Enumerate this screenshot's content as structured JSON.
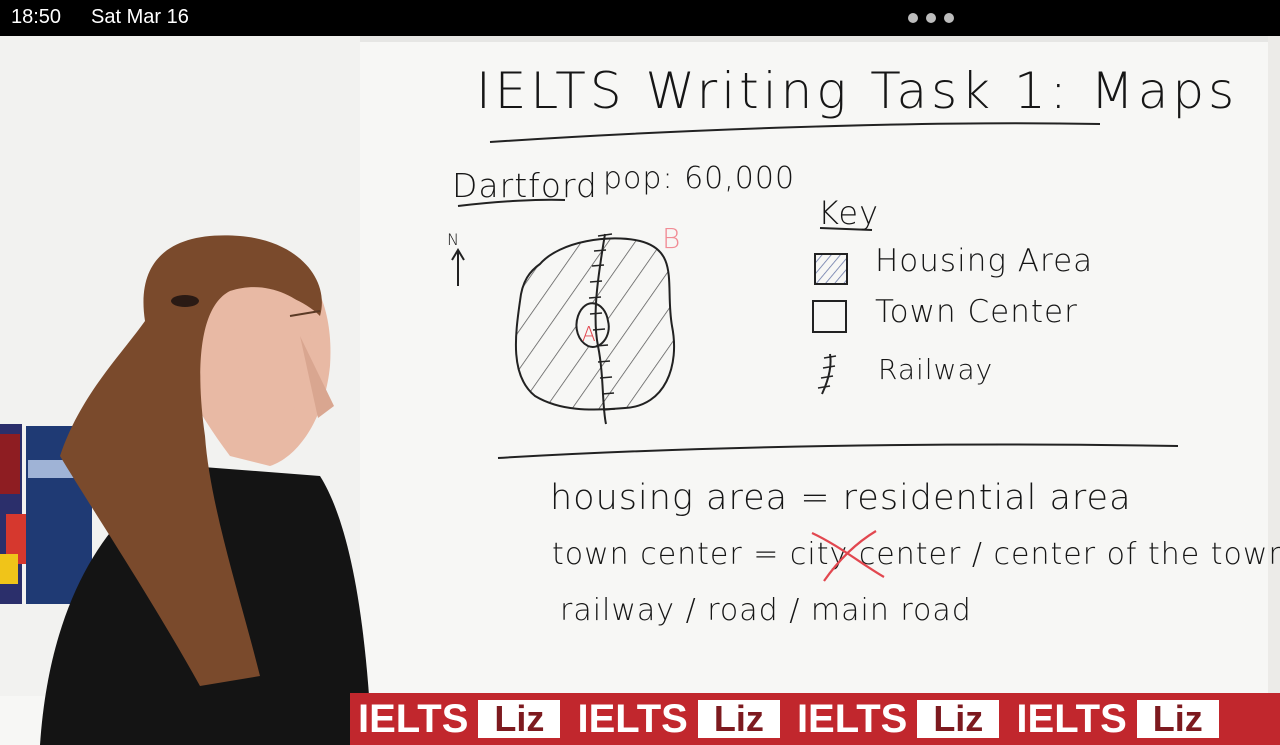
{
  "status_bar": {
    "time": "18:50",
    "date": "Sat Mar 16"
  },
  "whiteboard": {
    "title": "IELTS Writing Task 1: Maps",
    "city": "Dartford",
    "population": "pop: 60,000",
    "compass": "N",
    "map_labels": {
      "a": "A",
      "b": "B"
    },
    "key": {
      "heading": "Key",
      "items": [
        {
          "label": "Housing Area",
          "symbol": "hatched-square-icon"
        },
        {
          "label": "Town Center",
          "symbol": "empty-square-icon"
        },
        {
          "label": "Railway",
          "symbol": "railway-line-icon"
        }
      ]
    },
    "notes": {
      "line1": "housing area = residential area",
      "line2": "town center = city center / center of the town",
      "line3": "railway / road / main road"
    }
  },
  "banner": {
    "brand_word": "IELTS",
    "brand_box": "Liz",
    "colors": {
      "background": "#c1272d",
      "box": "#ffffff",
      "box_text": "#7d1a1f"
    }
  },
  "colors": {
    "marker_black": "#161616",
    "marker_red": "#e2474f",
    "whiteboard": "#f7f7f5"
  }
}
